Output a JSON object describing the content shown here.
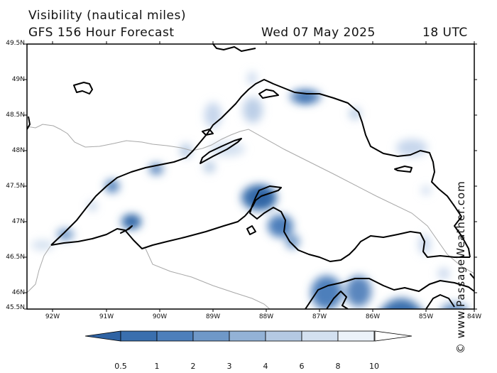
{
  "header": {
    "title": "Visibility (nautical miles)",
    "model": "GFS 156 Hour Forecast",
    "date": "Wed 07 May 2025",
    "time": "18 UTC"
  },
  "credit": "© www.PassageWeather.com",
  "axes": {
    "lat_labels": [
      "49.5N",
      "49N",
      "48.5N",
      "48N",
      "47.5N",
      "47N",
      "46.5N",
      "46N",
      "45.5N"
    ],
    "lon_labels": [
      "92W",
      "91W",
      "90W",
      "89W",
      "88W",
      "87W",
      "86W",
      "85W",
      "84W"
    ]
  },
  "colorbar": {
    "labels": [
      "0.5",
      "1",
      "2",
      "3",
      "4",
      "6",
      "8",
      "10"
    ],
    "colors": [
      "#3a6fae",
      "#4d7fbb",
      "#6f98c8",
      "#93b2d6",
      "#b4c9e3",
      "#d3e0f0",
      "#ecf2f9"
    ]
  }
}
